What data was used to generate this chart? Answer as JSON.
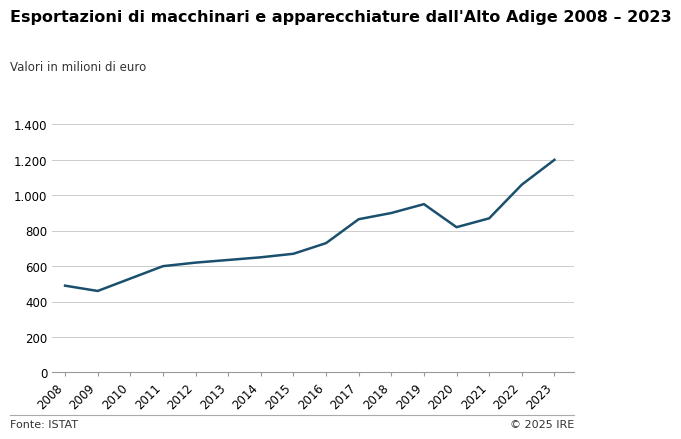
{
  "title": "Esportazioni di macchinari e apparecchiature dall'Alto Adige 2008 – 2023",
  "subtitle": "Valori in milioni di euro",
  "years": [
    2008,
    2009,
    2010,
    2011,
    2012,
    2013,
    2014,
    2015,
    2016,
    2017,
    2018,
    2019,
    2020,
    2021,
    2022,
    2023
  ],
  "values": [
    490,
    460,
    530,
    600,
    620,
    635,
    650,
    670,
    730,
    865,
    900,
    950,
    820,
    870,
    1060,
    1200
  ],
  "line_color": "#1a506e",
  "line_width": 1.8,
  "ylim": [
    0,
    1400
  ],
  "yticks": [
    0,
    200,
    400,
    600,
    800,
    1000,
    1200,
    1400
  ],
  "ytick_labels": [
    "0",
    "200",
    "400",
    "600",
    "800",
    "1.000",
    "1.200",
    "1.400"
  ],
  "grid_color": "#cccccc",
  "background_color": "#ffffff",
  "footer_left": "Fonte: ISTAT",
  "footer_right": "© 2025 IRE",
  "title_fontsize": 11.5,
  "subtitle_fontsize": 8.5,
  "tick_fontsize": 8.5,
  "footer_fontsize": 8
}
